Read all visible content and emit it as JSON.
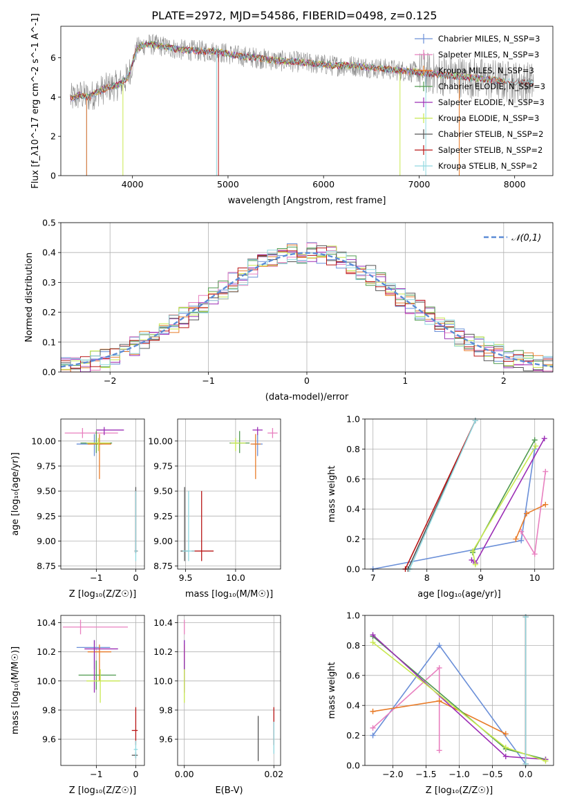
{
  "figure": {
    "title": "PLATE=2972, MJD=54586, FIBERID=0498, z=0.125"
  },
  "chart_data": [
    {
      "id": "spectrum",
      "type": "line",
      "xlabel": "wavelength [Angstrom, rest frame]",
      "ylabel": "Flux [f_λ10^-17 erg cm^-2 s^-1 A^-1]",
      "xlim": [
        3250,
        8400
      ],
      "ylim": [
        0,
        7.6
      ],
      "xticks": [
        4000,
        5000,
        6000,
        7000,
        8000
      ],
      "yticks": [
        0,
        2,
        4,
        6
      ],
      "grid": false,
      "legend_position": "upper-right",
      "series": [
        {
          "name": "Chabrier MILES, N_SSP=3",
          "color": "#6a8fd8"
        },
        {
          "name": "Salpeter MILES, N_SSP=3",
          "color": "#e87fbf"
        },
        {
          "name": "Kroupa MILES, N_SSP=3",
          "color": "#e87b28"
        },
        {
          "name": "Chabrier ELODIE, N_SSP=3",
          "color": "#4f9a4f"
        },
        {
          "name": "Salpeter ELODIE, N_SSP=3",
          "color": "#9b2db5"
        },
        {
          "name": "Kroupa ELODIE, N_SSP=3",
          "color": "#c8e84f"
        },
        {
          "name": "Chabrier STELIB, N_SSP=2",
          "color": "#555555"
        },
        {
          "name": "Salpeter STELIB, N_SSP=2",
          "color": "#b81414"
        },
        {
          "name": "Kroupa STELIB, N_SSP=2",
          "color": "#8fd8e0"
        }
      ],
      "continuum": {
        "x": [
          3350,
          3450,
          3550,
          3650,
          3750,
          3850,
          3950,
          4050,
          4150,
          4300,
          4500,
          4700,
          4900,
          5100,
          5300,
          5500,
          5700,
          5900,
          6100,
          6300,
          6500,
          6700,
          6900,
          7100,
          7300,
          7500,
          7700,
          7900,
          8100,
          8200
        ],
        "y": [
          3.9,
          4.1,
          4.0,
          4.3,
          4.5,
          4.6,
          5.0,
          6.5,
          6.7,
          6.6,
          6.4,
          6.35,
          6.3,
          6.1,
          6.0,
          5.85,
          5.8,
          5.7,
          5.6,
          5.6,
          5.5,
          5.4,
          5.3,
          5.2,
          5.1,
          5.0,
          4.9,
          4.8,
          4.75,
          4.7
        ]
      }
    },
    {
      "id": "residuals",
      "type": "line",
      "xlabel": "(data-model)/error",
      "ylabel": "Normed distribution",
      "xlim": [
        -2.5,
        2.5
      ],
      "ylim": [
        0,
        0.5
      ],
      "xticks": [
        -2,
        -1,
        0,
        1,
        2
      ],
      "yticks": [
        0.0,
        0.1,
        0.2,
        0.3,
        0.4,
        0.5
      ],
      "grid": true,
      "legend_position": "upper-right",
      "reference_curve": {
        "name": "𝒩(0,1)",
        "color": "#5b8bd6"
      },
      "bin_width": 0.1
    },
    {
      "id": "age-vs-Z",
      "type": "scatter",
      "xlabel": "Z [log₁₀(Z/Z☉)]",
      "ylabel": "age  [log₁₀(age/yr)]",
      "xlim": [
        -1.9,
        0.22
      ],
      "ylim": [
        8.72,
        10.22
      ],
      "xticks": [
        -1,
        0
      ],
      "yticks": [
        8.75,
        9.0,
        9.25,
        9.5,
        9.75,
        10.0
      ],
      "grid": true,
      "points": [
        {
          "x": -1.05,
          "y": 9.97,
          "xerr": [
            0.45,
            0.2
          ],
          "yerr": [
            0.12,
            0.1
          ],
          "color": "#6a8fd8"
        },
        {
          "x": -1.35,
          "y": 10.08,
          "xerr": [
            0.45,
            0.9
          ],
          "yerr": [
            0.05,
            0.05
          ],
          "color": "#e87fbf"
        },
        {
          "x": -0.92,
          "y": 9.97,
          "xerr": [
            0.3,
            0.3
          ],
          "yerr": [
            0.35,
            0.1
          ],
          "color": "#e87b28"
        },
        {
          "x": -1.0,
          "y": 9.98,
          "xerr": [
            0.4,
            0.4
          ],
          "yerr": [
            0.1,
            0.12
          ],
          "color": "#4f9a4f"
        },
        {
          "x": -0.8,
          "y": 10.11,
          "xerr": [
            0.2,
            0.5
          ],
          "yerr": [
            0.05,
            0.03
          ],
          "color": "#9b2db5"
        },
        {
          "x": -0.95,
          "y": 9.98,
          "xerr": [
            0.3,
            0.3
          ],
          "yerr": [
            0.08,
            0.05
          ],
          "color": "#c8e84f"
        },
        {
          "x": 0.0,
          "y": 8.9,
          "xerr": [
            0.03,
            0.05
          ],
          "yerr": [
            0.02,
            0.64
          ],
          "color": "#555555"
        },
        {
          "x": 0.0,
          "y": 8.9,
          "xerr": [
            0.03,
            0.05
          ],
          "yerr": [
            0.02,
            0.6
          ],
          "color": "#b81414"
        },
        {
          "x": 0.0,
          "y": 8.9,
          "xerr": [
            0.03,
            0.05
          ],
          "yerr": [
            0.1,
            0.6
          ],
          "color": "#8fd8e0"
        }
      ]
    },
    {
      "id": "age-vs-mass",
      "type": "scatter",
      "xlabel": "mass [log₁₀(M/M☉)]",
      "ylabel": "",
      "xlim": [
        9.42,
        10.45
      ],
      "ylim": [
        8.72,
        10.22
      ],
      "xticks": [
        9.5,
        10.0
      ],
      "yticks": [
        8.75,
        9.0,
        9.25,
        9.5,
        9.75,
        10.0
      ],
      "grid": true,
      "points": [
        {
          "x": 10.22,
          "y": 9.97,
          "xerr": [
            0.05,
            0.05
          ],
          "yerr": [
            0.12,
            0.1
          ],
          "color": "#6a8fd8"
        },
        {
          "x": 10.37,
          "y": 10.08,
          "xerr": [
            0.05,
            0.05
          ],
          "yerr": [
            0.05,
            0.05
          ],
          "color": "#e87fbf"
        },
        {
          "x": 10.2,
          "y": 9.97,
          "xerr": [
            0.05,
            0.05
          ],
          "yerr": [
            0.35,
            0.1
          ],
          "color": "#e87b28"
        },
        {
          "x": 10.04,
          "y": 9.98,
          "xerr": [
            0.1,
            0.1
          ],
          "yerr": [
            0.1,
            0.12
          ],
          "color": "#4f9a4f"
        },
        {
          "x": 10.22,
          "y": 10.11,
          "xerr": [
            0.05,
            0.05
          ],
          "yerr": [
            0.05,
            0.03
          ],
          "color": "#9b2db5"
        },
        {
          "x": 10.0,
          "y": 9.98,
          "xerr": [
            0.05,
            0.1
          ],
          "yerr": [
            0.08,
            0.05
          ],
          "color": "#c8e84f"
        },
        {
          "x": 9.49,
          "y": 8.9,
          "xerr": [
            0.04,
            0.04
          ],
          "yerr": [
            0.1,
            0.64
          ],
          "color": "#555555"
        },
        {
          "x": 9.66,
          "y": 8.9,
          "xerr": [
            0.1,
            0.12
          ],
          "yerr": [
            0.1,
            0.6
          ],
          "color": "#b81414"
        },
        {
          "x": 9.53,
          "y": 8.9,
          "xerr": [
            0.06,
            0.06
          ],
          "yerr": [
            0.1,
            0.6
          ],
          "color": "#8fd8e0"
        }
      ]
    },
    {
      "id": "weight-vs-age",
      "type": "line",
      "xlabel": "age  [log₁₀(age/yr)]",
      "ylabel": "mass weight",
      "xlim": [
        6.85,
        10.35
      ],
      "ylim": [
        0,
        1
      ],
      "xticks": [
        7,
        8,
        9,
        10
      ],
      "yticks": [
        0.0,
        0.2,
        0.4,
        0.6,
        0.8,
        1.0
      ],
      "grid": true,
      "series": [
        {
          "name": "Chabrier MILES",
          "color": "#6a8fd8",
          "x": [
            7.0,
            9.75,
            10.0
          ],
          "y": [
            0.0,
            0.19,
            0.8
          ]
        },
        {
          "name": "Salpeter MILES",
          "color": "#e87fbf",
          "x": [
            9.75,
            10.0,
            10.2
          ],
          "y": [
            0.25,
            0.1,
            0.65
          ]
        },
        {
          "name": "Kroupa MILES",
          "color": "#e87b28",
          "x": [
            9.65,
            9.85,
            10.2
          ],
          "y": [
            0.2,
            0.37,
            0.43
          ]
        },
        {
          "name": "Chabrier ELODIE",
          "color": "#4f9a4f",
          "x": [
            8.85,
            10.0
          ],
          "y": [
            0.11,
            0.86
          ]
        },
        {
          "name": "Salpeter ELODIE",
          "color": "#9b2db5",
          "x": [
            8.83,
            8.9,
            10.18
          ],
          "y": [
            0.06,
            0.04,
            0.87
          ]
        },
        {
          "name": "Kroupa ELODIE",
          "color": "#c8e84f",
          "x": [
            8.9,
            8.85,
            10.02
          ],
          "y": [
            0.03,
            0.12,
            0.82
          ]
        },
        {
          "name": "Chabrier STELIB",
          "color": "#555555",
          "x": [
            7.65,
            8.9
          ],
          "y": [
            0.0,
            0.99
          ]
        },
        {
          "name": "Salpeter STELIB",
          "color": "#b81414",
          "x": [
            7.6,
            8.9
          ],
          "y": [
            0.0,
            0.99
          ]
        },
        {
          "name": "Kroupa STELIB",
          "color": "#8fd8e0",
          "x": [
            7.68,
            8.9
          ],
          "y": [
            0.0,
            0.99
          ]
        }
      ]
    },
    {
      "id": "mass-vs-Z",
      "type": "scatter",
      "xlabel": "Z [log₁₀(Z/Z☉)]",
      "ylabel": "mass [log₁₀(M/M☉)]",
      "xlim": [
        -1.9,
        0.22
      ],
      "ylim": [
        9.42,
        10.45
      ],
      "xticks": [
        -1,
        0
      ],
      "yticks": [
        9.6,
        9.8,
        10.0,
        10.2,
        10.4
      ],
      "grid": true,
      "points": [
        {
          "x": -1.05,
          "y": 10.23,
          "xerr": [
            0.45,
            0.4
          ],
          "yerr": [
            0.15,
            0.05
          ],
          "color": "#6a8fd8"
        },
        {
          "x": -1.4,
          "y": 10.37,
          "xerr": [
            0.45,
            1.2
          ],
          "yerr": [
            0.05,
            0.05
          ],
          "color": "#e87fbf"
        },
        {
          "x": -0.92,
          "y": 10.2,
          "xerr": [
            0.3,
            0.3
          ],
          "yerr": [
            0.2,
            0.05
          ],
          "color": "#e87b28"
        },
        {
          "x": -1.0,
          "y": 10.04,
          "xerr": [
            0.45,
            0.5
          ],
          "yerr": [
            0.1,
            0.1
          ],
          "color": "#4f9a4f"
        },
        {
          "x": -1.05,
          "y": 10.22,
          "xerr": [
            0.25,
            0.6
          ],
          "yerr": [
            0.3,
            0.06
          ],
          "color": "#9b2db5"
        },
        {
          "x": -0.9,
          "y": 10.0,
          "xerr": [
            0.35,
            0.5
          ],
          "yerr": [
            0.15,
            0.08
          ],
          "color": "#c8e84f"
        },
        {
          "x": 0.0,
          "y": 9.49,
          "xerr": [
            0.1,
            0.05
          ],
          "yerr": [
            0.02,
            0.02
          ],
          "color": "#555555"
        },
        {
          "x": 0.0,
          "y": 9.66,
          "xerr": [
            0.1,
            0.05
          ],
          "yerr": [
            0.1,
            0.16
          ],
          "color": "#b81414"
        },
        {
          "x": 0.0,
          "y": 9.53,
          "xerr": [
            0.05,
            0.05
          ],
          "yerr": [
            0.06,
            0.06
          ],
          "color": "#8fd8e0"
        }
      ]
    },
    {
      "id": "mass-vs-EBV",
      "type": "scatter",
      "xlabel": "E(B-V)",
      "ylabel": "",
      "xlim": [
        -0.0015,
        0.0215
      ],
      "ylim": [
        9.42,
        10.45
      ],
      "xticks": [
        0.0,
        0.02
      ],
      "yticks": [
        9.6,
        9.8,
        10.0,
        10.2,
        10.4
      ],
      "grid": true,
      "points": [
        {
          "x": 0.0,
          "y": 10.23,
          "yerr": [
            0.15,
            0.05
          ],
          "color": "#6a8fd8"
        },
        {
          "x": 0.0,
          "y": 10.37,
          "yerr": [
            0.05,
            0.05
          ],
          "color": "#e87fbf"
        },
        {
          "x": 0.0,
          "y": 10.2,
          "yerr": [
            0.2,
            0.05
          ],
          "color": "#e87b28"
        },
        {
          "x": 0.0,
          "y": 10.04,
          "yerr": [
            0.1,
            0.1
          ],
          "color": "#4f9a4f"
        },
        {
          "x": 0.0,
          "y": 10.22,
          "yerr": [
            0.3,
            0.06
          ],
          "color": "#9b2db5"
        },
        {
          "x": 0.0,
          "y": 10.0,
          "yerr": [
            0.15,
            0.08
          ],
          "color": "#c8e84f"
        },
        {
          "x": 0.0165,
          "y": 9.6,
          "yerr": [
            0.15,
            0.16
          ],
          "color": "#555555"
        },
        {
          "x": 0.02,
          "y": 9.66,
          "yerr": [
            0.1,
            0.16
          ],
          "color": "#b81414"
        },
        {
          "x": 0.02,
          "y": 9.6,
          "yerr": [
            0.1,
            0.12
          ],
          "color": "#8fd8e0"
        }
      ]
    },
    {
      "id": "weight-vs-Z",
      "type": "line",
      "xlabel": "Z [log₁₀(Z/Z☉)]",
      "ylabel": "mass weight",
      "xlim": [
        -2.42,
        0.42
      ],
      "ylim": [
        0,
        1
      ],
      "xticks": [
        -2.0,
        -1.5,
        -1.0,
        -0.5,
        0.0
      ],
      "yticks": [
        0.0,
        0.2,
        0.4,
        0.6,
        0.8,
        1.0
      ],
      "grid": true,
      "series": [
        {
          "name": "Chabrier MILES",
          "color": "#6a8fd8",
          "x": [
            -2.3,
            -1.3,
            0.0
          ],
          "y": [
            0.2,
            0.8,
            0.01
          ]
        },
        {
          "name": "Salpeter MILES",
          "color": "#e87fbf",
          "x": [
            -2.3,
            -1.3,
            -1.3
          ],
          "y": [
            0.25,
            0.65,
            0.1
          ]
        },
        {
          "name": "Kroupa MILES",
          "color": "#e87b28",
          "x": [
            -2.3,
            -1.3,
            -0.3
          ],
          "y": [
            0.36,
            0.43,
            0.21
          ]
        },
        {
          "name": "Chabrier ELODIE",
          "color": "#4f9a4f",
          "x": [
            -2.3,
            -0.3,
            0.3
          ],
          "y": [
            0.86,
            0.11,
            0.04
          ]
        },
        {
          "name": "Salpeter ELODIE",
          "color": "#9b2db5",
          "x": [
            -2.3,
            -0.3,
            0.3
          ],
          "y": [
            0.87,
            0.06,
            0.04
          ]
        },
        {
          "name": "Kroupa ELODIE",
          "color": "#c8e84f",
          "x": [
            -2.3,
            -0.3,
            0.3
          ],
          "y": [
            0.82,
            0.12,
            0.03
          ]
        },
        {
          "name": "Chabrier STELIB",
          "color": "#555555",
          "x": [
            0.0,
            0.0
          ],
          "y": [
            0.01,
            0.99
          ]
        },
        {
          "name": "Salpeter STELIB",
          "color": "#b81414",
          "x": [
            0.0,
            0.0
          ],
          "y": [
            0.01,
            0.99
          ]
        },
        {
          "name": "Kroupa STELIB",
          "color": "#8fd8e0",
          "x": [
            0.0,
            0.0
          ],
          "y": [
            0.01,
            0.99
          ]
        }
      ]
    }
  ]
}
